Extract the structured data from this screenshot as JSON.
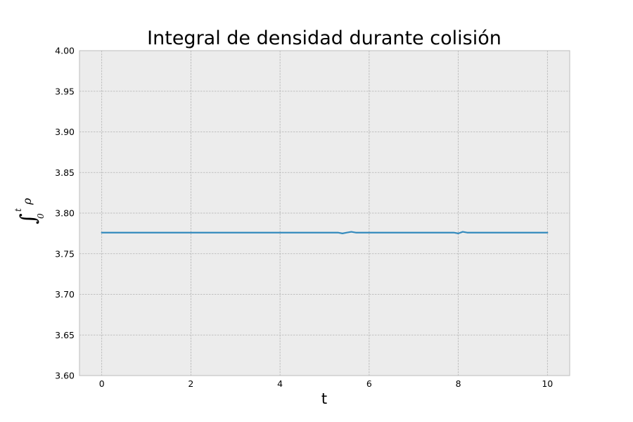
{
  "chart_data": {
    "type": "line",
    "title": "Integral de densidad durante colisión",
    "xlabel": "t",
    "ylabel": {
      "symbol": "∫",
      "lower": "0",
      "upper": "t",
      "integrand": "ρ"
    },
    "xlim": [
      -0.5,
      10.5
    ],
    "ylim": [
      3.6,
      4.0
    ],
    "xticks": [
      0,
      2,
      4,
      6,
      8,
      10
    ],
    "xtick_labels": [
      "0",
      "2",
      "4",
      "6",
      "8",
      "10"
    ],
    "yticks": [
      3.6,
      3.65,
      3.7,
      3.75,
      3.8,
      3.85,
      3.9,
      3.95,
      4.0
    ],
    "ytick_labels": [
      "3.60",
      "3.65",
      "3.70",
      "3.75",
      "3.80",
      "3.85",
      "3.90",
      "3.95",
      "4.00"
    ],
    "grid": true,
    "series": [
      {
        "color": "#348abd",
        "x": [
          0,
          1,
          2,
          3,
          4,
          5,
          5.3,
          5.4,
          5.5,
          5.6,
          5.7,
          6,
          7,
          7.9,
          8.0,
          8.1,
          8.2,
          9,
          10
        ],
        "y": [
          3.776,
          3.776,
          3.776,
          3.776,
          3.776,
          3.776,
          3.776,
          3.775,
          3.776,
          3.777,
          3.776,
          3.776,
          3.776,
          3.776,
          3.775,
          3.777,
          3.776,
          3.776,
          3.776
        ]
      }
    ]
  }
}
